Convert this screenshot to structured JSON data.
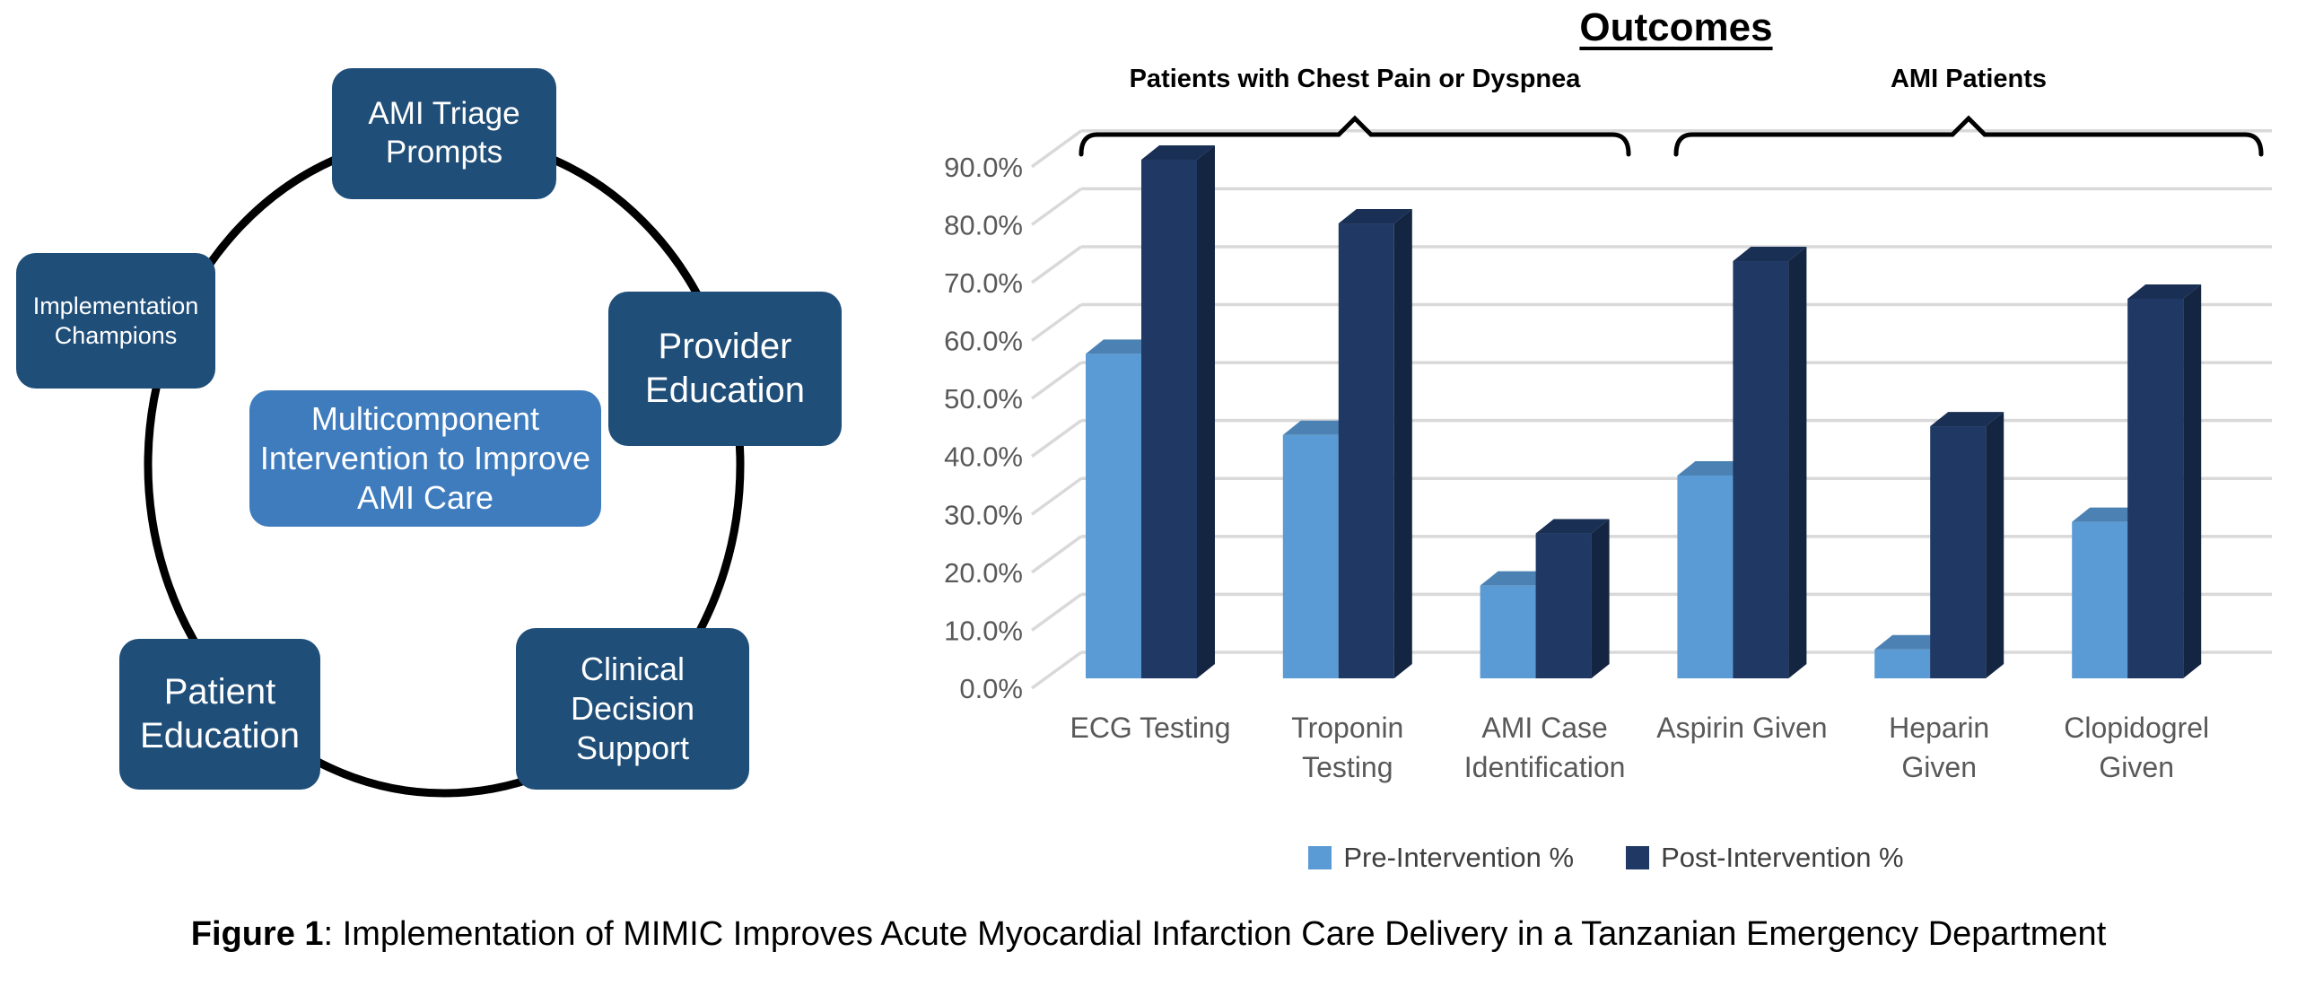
{
  "figure_caption": {
    "label": "Figure 1",
    "text": ": Implementation of MIMIC Improves Acute Myocardial Infarction Care Delivery in a Tanzanian Emergency Department"
  },
  "diagram": {
    "center_node": {
      "label": "Multicomponent Intervention to Improve AMI Care"
    },
    "nodes": [
      {
        "label": "AMI Triage Prompts"
      },
      {
        "label": "Provider Education"
      },
      {
        "label": "Clinical Decision Support"
      },
      {
        "label": "Patient Education"
      },
      {
        "label": "Implementation Champions"
      }
    ],
    "colors": {
      "node": "#1F4E79",
      "center_node": "#3E7CBE",
      "ring": "#000000"
    }
  },
  "chart_data": {
    "type": "bar",
    "style": "3d-clustered-column",
    "title": "Outcomes",
    "group_annotations": [
      {
        "label": "Patients with Chest Pain or Dyspnea",
        "categories": [
          "ECG Testing",
          "Troponin Testing",
          "AMI Case Identification"
        ]
      },
      {
        "label": "AMI Patients",
        "categories": [
          "Aspirin Given",
          "Heparin Given",
          "Clopidogrel Given"
        ]
      }
    ],
    "categories": [
      "ECG Testing",
      "Troponin Testing",
      "AMI Case Identification",
      "Aspirin Given",
      "Heparin Given",
      "Clopidogrel Given"
    ],
    "category_lines": [
      [
        "ECG Testing"
      ],
      [
        "Troponin",
        "Testing"
      ],
      [
        "AMI Case",
        "Identification"
      ],
      [
        "Aspirin Given"
      ],
      [
        "Heparin",
        "Given"
      ],
      [
        "Clopidogrel",
        "Given"
      ]
    ],
    "series": [
      {
        "name": "Pre-Intervention %",
        "color": "#5B9BD5",
        "values": [
          56,
          42,
          16,
          35,
          5,
          27
        ]
      },
      {
        "name": "Post-Intervention %",
        "color": "#1F3864",
        "values": [
          89.5,
          78.5,
          25,
          72,
          43.5,
          65.5
        ]
      }
    ],
    "ylabel": "",
    "xlabel": "",
    "ylim": [
      0,
      90
    ],
    "ytick_step": 10,
    "yticks": [
      "0.0%",
      "10.0%",
      "20.0%",
      "30.0%",
      "40.0%",
      "50.0%",
      "60.0%",
      "70.0%",
      "80.0%",
      "90.0%"
    ],
    "grid": true,
    "legend_position": "bottom",
    "axis_text_color": "#595959",
    "grid_color": "#D9D9D9"
  }
}
